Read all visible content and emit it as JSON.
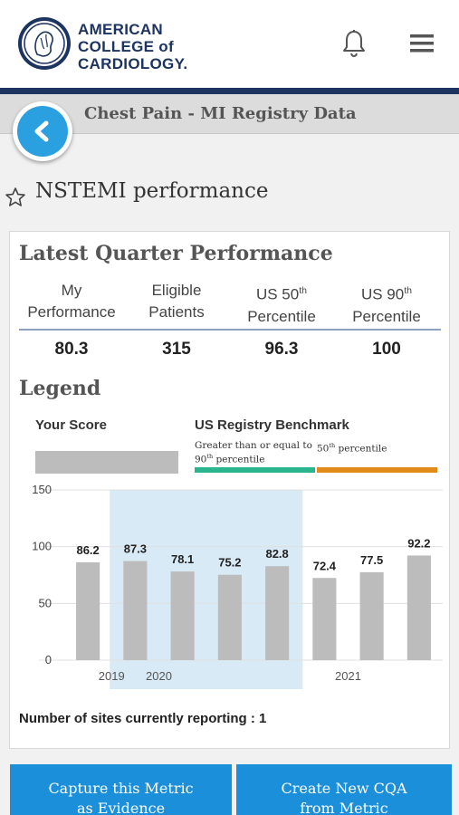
{
  "header": {
    "logo_lines": [
      "AMERICAN",
      "COLLEGE of",
      "CARDIOLOGY."
    ]
  },
  "subbar": {
    "title": "Chest Pain - MI Registry Data"
  },
  "page": {
    "title": "NSTEMI performance"
  },
  "card": {
    "latest_title": "Latest Quarter Performance",
    "columns": [
      {
        "line1": "My",
        "line2": "Performance",
        "value": "80.3"
      },
      {
        "line1": "Eligible",
        "line2": "Patients",
        "value": "315"
      },
      {
        "line1": "US 50th",
        "line2": "Percentile",
        "value": "96.3"
      },
      {
        "line1": "US 90th",
        "line2": "Percentile",
        "value": "100"
      }
    ],
    "legend_title": "Legend",
    "legend_your_score": "Your Score",
    "legend_benchmark": "US Registry Benchmark",
    "legend_note_left": "Greater than or equal to 90th percentile",
    "legend_note_right": "50th percentile",
    "sites_text": "Number of sites currently reporting : 1"
  },
  "colors": {
    "navy": "#1d3461",
    "accent_blue": "#1b8fd9",
    "bar_gray": "#bcbcbc",
    "benchmark_green": "#2bb58e",
    "benchmark_orange": "#e08a1a",
    "highlight_band": "#d8eaf6"
  },
  "chart_data": {
    "type": "bar",
    "categories": [
      "",
      "",
      "",
      "",
      "",
      "",
      "",
      ""
    ],
    "values": [
      86.2,
      87.3,
      78.1,
      75.2,
      82.8,
      72.4,
      77.5,
      92.2
    ],
    "data_labels": [
      "86.2",
      "87.3",
      "78.1",
      "75.2",
      "82.8",
      "72.4",
      "77.5",
      "92.2"
    ],
    "year_labels": [
      {
        "label": "2019",
        "after_index": 0
      },
      {
        "label": "2020",
        "after_index": 1
      },
      {
        "label": "2021",
        "after_index": 5
      }
    ],
    "highlight_range": [
      1,
      4
    ],
    "yticks": [
      0,
      50,
      100,
      150
    ],
    "ylim": [
      0,
      150
    ],
    "grid": true
  },
  "buttons": {
    "capture": [
      "Capture this Metric",
      "as Evidence"
    ],
    "create": [
      "Create New CQA",
      "from Metric"
    ]
  }
}
